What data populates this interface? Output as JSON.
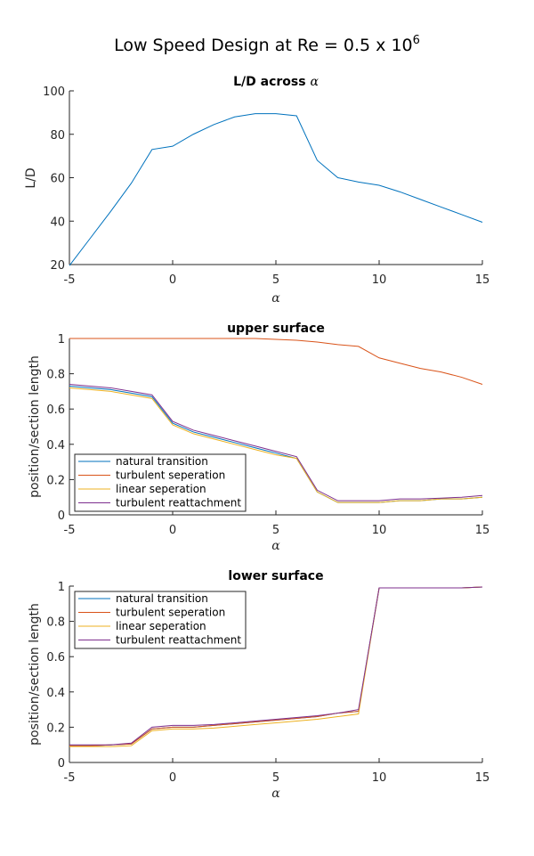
{
  "figure": {
    "title_main": "Low Speed Design at Re = 0.5 x 10",
    "title_sup": "6"
  },
  "colors": {
    "blue": "#0072BD",
    "orange": "#D95319",
    "yellow": "#EDB120",
    "purple": "#7E2F8E"
  },
  "chart_data": [
    {
      "type": "line",
      "title": "L/D across",
      "title_symbol": "α",
      "xlabel": "α",
      "ylabel": "L/D",
      "xlim": [
        -5,
        15
      ],
      "ylim": [
        20,
        100
      ],
      "xticks": [
        -5,
        0,
        5,
        10,
        15
      ],
      "yticks": [
        20,
        40,
        60,
        80,
        100
      ],
      "grid": false,
      "legend": false,
      "series": [
        {
          "color": "blue",
          "x": [
            -5,
            -4,
            -3,
            -2,
            -1,
            0,
            1,
            2,
            3,
            4,
            5,
            6,
            7,
            8,
            9,
            10,
            11,
            12,
            13,
            14,
            15
          ],
          "y": [
            19.5,
            32,
            44.5,
            57.5,
            73,
            74.5,
            80,
            84.5,
            88,
            89.5,
            89.5,
            88.5,
            68,
            60,
            58,
            56.5,
            53.5,
            50,
            46.5,
            43,
            39.5
          ]
        }
      ]
    },
    {
      "type": "line",
      "title": "upper surface",
      "xlabel": "α",
      "ylabel": "position/section length",
      "xlim": [
        -5,
        15
      ],
      "ylim": [
        0,
        1
      ],
      "xticks": [
        -5,
        0,
        5,
        10,
        15
      ],
      "yticks": [
        0,
        0.2,
        0.4,
        0.6,
        0.8,
        1
      ],
      "grid": false,
      "legend": "bottom-left",
      "x": [
        -5,
        -4,
        -3,
        -2,
        -1,
        0,
        1,
        2,
        3,
        4,
        5,
        6,
        7,
        8,
        9,
        10,
        11,
        12,
        13,
        14,
        15
      ],
      "series": [
        {
          "name": "natural transition",
          "color": "blue",
          "values": [
            0.73,
            0.72,
            0.71,
            0.69,
            0.67,
            0.52,
            0.47,
            0.44,
            0.41,
            0.38,
            0.35,
            0.32,
            0.13,
            0.07,
            0.07,
            0.07,
            0.08,
            0.08,
            0.09,
            0.09,
            0.1
          ]
        },
        {
          "name": "turbulent seperation",
          "color": "orange",
          "values": [
            1,
            1,
            1,
            1,
            1,
            1,
            1,
            1,
            1,
            1,
            0.995,
            0.99,
            0.98,
            0.965,
            0.955,
            0.89,
            0.86,
            0.83,
            0.81,
            0.78,
            0.74
          ]
        },
        {
          "name": "linear seperation",
          "color": "yellow",
          "values": [
            0.72,
            0.71,
            0.7,
            0.68,
            0.66,
            0.51,
            0.46,
            0.43,
            0.4,
            0.37,
            0.34,
            0.32,
            0.13,
            0.07,
            0.07,
            0.07,
            0.08,
            0.08,
            0.09,
            0.09,
            0.1
          ]
        },
        {
          "name": "turbulent reattachment",
          "color": "purple",
          "values": [
            0.74,
            0.73,
            0.72,
            0.7,
            0.68,
            0.53,
            0.48,
            0.45,
            0.42,
            0.39,
            0.36,
            0.33,
            0.14,
            0.08,
            0.08,
            0.08,
            0.09,
            0.09,
            0.095,
            0.1,
            0.11
          ]
        }
      ]
    },
    {
      "type": "line",
      "title": "lower surface",
      "xlabel": "α",
      "ylabel": "position/section length",
      "xlim": [
        -5,
        15
      ],
      "ylim": [
        0,
        1
      ],
      "xticks": [
        -5,
        0,
        5,
        10,
        15
      ],
      "yticks": [
        0,
        0.2,
        0.4,
        0.6,
        0.8,
        1
      ],
      "grid": false,
      "legend": "top-left",
      "x": [
        -5,
        -4,
        -3,
        -2,
        -1,
        0,
        1,
        2,
        3,
        4,
        5,
        6,
        7,
        8,
        9,
        10,
        11,
        12,
        13,
        14,
        15
      ],
      "series": [
        {
          "name": "natural transition",
          "color": "blue",
          "values": [
            0.095,
            0.095,
            0.1,
            0.105,
            0.19,
            0.2,
            0.2,
            0.21,
            0.22,
            0.23,
            0.24,
            0.25,
            0.26,
            0.28,
            0.29,
            0.99,
            0.99,
            0.99,
            0.99,
            0.99,
            0.995
          ]
        },
        {
          "name": "turbulent seperation",
          "color": "orange",
          "values": [
            0.095,
            0.095,
            0.1,
            0.105,
            0.19,
            0.2,
            0.2,
            0.21,
            0.22,
            0.23,
            0.24,
            0.25,
            0.26,
            0.28,
            0.29,
            0.99,
            0.99,
            0.99,
            0.99,
            0.99,
            0.995
          ]
        },
        {
          "name": "linear seperation",
          "color": "yellow",
          "values": [
            0.09,
            0.09,
            0.09,
            0.095,
            0.18,
            0.19,
            0.19,
            0.195,
            0.205,
            0.215,
            0.225,
            0.235,
            0.245,
            0.26,
            0.275,
            0.99,
            0.99,
            0.99,
            0.99,
            0.99,
            0.995
          ]
        },
        {
          "name": "turbulent reattachment",
          "color": "purple",
          "values": [
            0.1,
            0.1,
            0.1,
            0.11,
            0.2,
            0.21,
            0.21,
            0.215,
            0.225,
            0.235,
            0.245,
            0.255,
            0.265,
            0.28,
            0.3,
            0.99,
            0.99,
            0.99,
            0.99,
            0.99,
            0.995
          ]
        }
      ]
    }
  ]
}
